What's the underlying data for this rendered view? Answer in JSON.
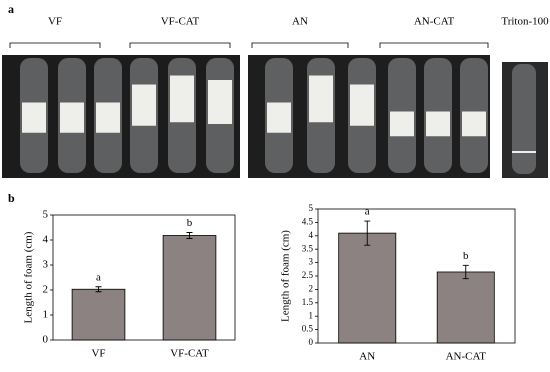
{
  "figure": {
    "panel_a_label": "a",
    "panel_b_label": "b",
    "groups": [
      "VF",
      "VF-CAT",
      "AN",
      "AN-CAT",
      "Triton-100"
    ]
  },
  "chart_data": [
    {
      "type": "bar",
      "ylabel": "Length of foam (cm)",
      "categories": [
        "VF",
        "VF-CAT"
      ],
      "values": [
        2.03,
        4.18
      ],
      "errors": [
        0.1,
        0.12
      ],
      "annotations": [
        "a",
        "b"
      ],
      "color": "#8c8282",
      "ylim": [
        0,
        5
      ],
      "yticks": [
        0,
        1,
        2,
        3,
        4,
        5
      ]
    },
    {
      "type": "bar",
      "ylabel": "Length of foam (cm)",
      "categories": [
        "AN",
        "AN-CAT"
      ],
      "values": [
        4.1,
        2.65
      ],
      "errors": [
        0.45,
        0.25
      ],
      "annotations": [
        "a",
        "b"
      ],
      "color": "#8c8282",
      "ylim": [
        0,
        5
      ],
      "yticks": [
        0,
        0.5,
        1,
        1.5,
        2,
        2.5,
        3,
        3.5,
        4,
        4.5,
        5
      ]
    }
  ]
}
